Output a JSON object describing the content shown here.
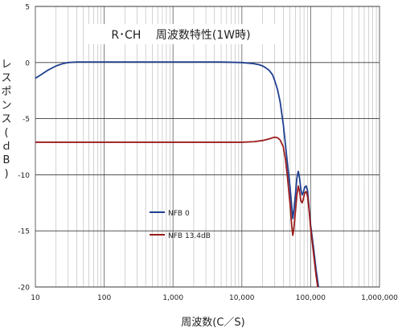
{
  "chart_data": {
    "type": "line",
    "title": "R･CH　 周波数特性(1W時)",
    "xlabel": "周波数(C／S)",
    "ylabel": "レスポンス(ｄB)",
    "x_scale": "log",
    "xlim": [
      10,
      1000000
    ],
    "ylim": [
      -20,
      5
    ],
    "x_ticks": [
      10,
      100,
      1000,
      10000,
      100000,
      1000000
    ],
    "x_tick_labels": [
      "10",
      "100",
      "1,000",
      "10,000",
      "100,000",
      "1,000,000"
    ],
    "y_ticks": [
      5,
      0,
      -5,
      -10,
      -15,
      -20
    ],
    "y_tick_labels": [
      "5",
      "0",
      "-5",
      "-10",
      "-15",
      "-20"
    ],
    "grid": true,
    "legend_position": "lower-left",
    "series": [
      {
        "name": "NFB 0",
        "color": "#1f3f8f",
        "x": [
          10,
          12,
          15,
          20,
          25,
          30,
          40,
          50,
          70,
          100,
          200,
          500,
          1000,
          2000,
          5000,
          10000,
          12000,
          15000,
          18000,
          20000,
          22000,
          25000,
          28000,
          30000,
          33000,
          36000,
          40000,
          43000,
          46000,
          50000,
          53000,
          55000,
          57000,
          60000,
          63000,
          66000,
          69000,
          72000,
          75000,
          78000,
          82000,
          86000,
          90000,
          95000,
          100000,
          110000,
          120000,
          130000,
          140000
        ],
        "y": [
          -1.4,
          -1.1,
          -0.7,
          -0.3,
          -0.1,
          0.0,
          0.05,
          0.05,
          0.05,
          0.05,
          0.05,
          0.05,
          0.05,
          0.05,
          0.05,
          0.0,
          -0.05,
          -0.1,
          -0.2,
          -0.3,
          -0.45,
          -0.7,
          -1.1,
          -1.6,
          -2.4,
          -3.5,
          -5.5,
          -7.3,
          -9.0,
          -11.0,
          -12.8,
          -13.9,
          -13.2,
          -11.8,
          -10.3,
          -9.7,
          -10.3,
          -11.3,
          -11.8,
          -11.6,
          -11.1,
          -11.0,
          -11.4,
          -13.0,
          -14.5,
          -16.5,
          -18.5,
          -20.0,
          -21.0
        ]
      },
      {
        "name": "NFB 13.4dB",
        "color": "#9b1c1c",
        "x": [
          10,
          100,
          1000,
          10000,
          15000,
          20000,
          25000,
          28000,
          30000,
          33000,
          36000,
          40000,
          43000,
          46000,
          50000,
          53000,
          55000,
          57000,
          60000,
          63000,
          66000,
          69000,
          72000,
          75000,
          78000,
          82000,
          86000,
          90000,
          95000,
          100000,
          110000,
          120000,
          130000,
          140000
        ],
        "y": [
          -7.1,
          -7.1,
          -7.1,
          -7.1,
          -7.05,
          -6.95,
          -6.8,
          -6.7,
          -6.65,
          -6.7,
          -6.9,
          -7.5,
          -8.6,
          -10.2,
          -12.5,
          -14.5,
          -15.4,
          -14.8,
          -13.3,
          -11.8,
          -11.0,
          -11.5,
          -12.3,
          -12.5,
          -12.2,
          -11.6,
          -11.5,
          -11.9,
          -13.2,
          -14.8,
          -17.0,
          -19.0,
          -20.5,
          -21.5
        ]
      }
    ]
  }
}
